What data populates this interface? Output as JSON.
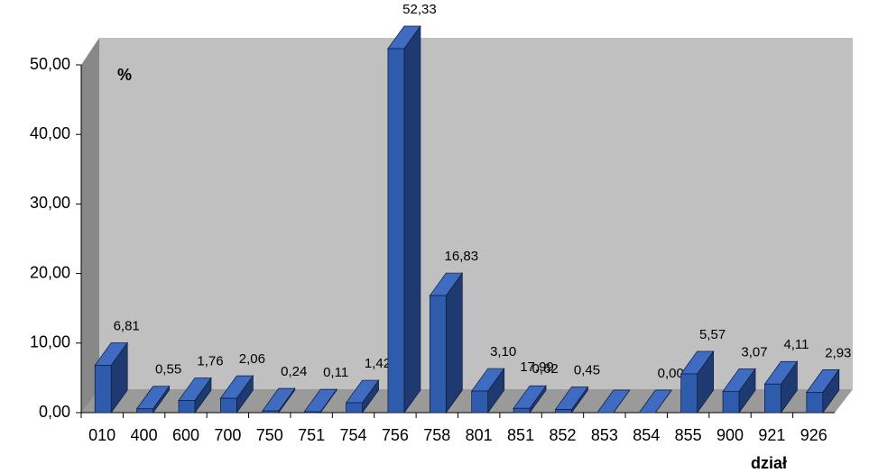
{
  "chart_data": {
    "type": "bar3d",
    "categories": [
      "010",
      "400",
      "600",
      "700",
      "750",
      "751",
      "754",
      "756",
      "758",
      "801",
      "851",
      "852",
      "853",
      "854",
      "855",
      "900",
      "921",
      "926"
    ],
    "values": [
      6.81,
      0.55,
      1.76,
      2.06,
      0.24,
      0.11,
      1.42,
      52.33,
      16.83,
      3.1,
      0.62,
      0.45,
      0,
      0,
      5.57,
      3.07,
      4.11,
      2.93
    ],
    "value_labels": [
      "6,81",
      "0,55",
      "1,76",
      "2,06",
      "0,24",
      "0,11",
      "1,42",
      "52,33",
      "16,83",
      "3,10",
      "0,62",
      "0,45",
      null,
      "0,00",
      "5,57",
      "3,07",
      "4,11",
      "2,93"
    ],
    "annotations": [
      "17,99"
    ],
    "color": "#2f5bad",
    "ylim": [
      0,
      50
    ],
    "yticks": [
      {
        "value": 0,
        "label": "0,00"
      },
      {
        "value": 10,
        "label": "10,00"
      },
      {
        "value": 20,
        "label": "20,00"
      },
      {
        "value": 30,
        "label": "30,00"
      },
      {
        "value": 40,
        "label": "40,00"
      },
      {
        "value": 50,
        "label": "50,00"
      }
    ],
    "y_unit_label": "%",
    "xlabel": "dział",
    "grid": false
  }
}
